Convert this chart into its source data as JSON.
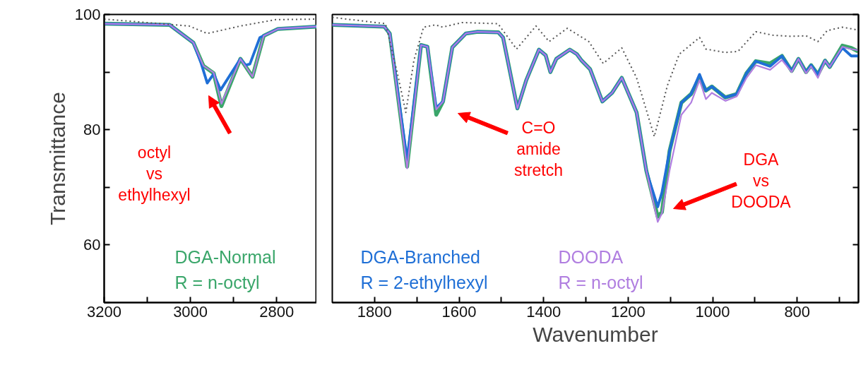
{
  "chart_data": [
    {
      "type": "line",
      "ylabel": "Transmittance",
      "xlim": [
        3200,
        2707
      ],
      "xticks": [
        3200,
        {
          "value": 3100,
          "label": null
        },
        3000,
        {
          "value": 2900,
          "label": null
        },
        2800
      ],
      "ylim": [
        50,
        100
      ],
      "yticks": [
        {
          "value": 50,
          "label": null
        },
        60,
        {
          "value": 70,
          "label": null
        },
        80,
        {
          "value": 90,
          "label": null
        },
        100
      ],
      "grid": false,
      "legend": "bottom",
      "marker": "none",
      "annotations": [
        "octyl\nvs\nethylhexyl"
      ],
      "series": [
        {
          "name": "DGA-Normal\nR = n-octyl",
          "color": "#3aa66a",
          "line_style": "solid",
          "x": [
            3200,
            3048,
            2993,
            2970,
            2946,
            2928,
            2884,
            2856,
            2830,
            2797,
            2707
          ],
          "values": [
            98.4,
            98.2,
            95.1,
            91.1,
            89.8,
            84.1,
            92.3,
            89.2,
            96.3,
            97.5,
            97.9
          ]
        },
        {
          "color": "#1f6fd6",
          "line_style": "solid",
          "x": [
            3200,
            3048,
            2993,
            2975,
            2961,
            2946,
            2930,
            2884,
            2872,
            2862,
            2839,
            2797,
            2707
          ],
          "values": [
            98.4,
            98.2,
            95.1,
            91.5,
            88.1,
            89.7,
            86.9,
            92.3,
            91.2,
            91.4,
            96.0,
            97.5,
            97.9
          ]
        },
        {
          "color": "#b07ee0",
          "line_style": "solid",
          "x": [
            3200,
            3048,
            2993,
            2970,
            2946,
            2928,
            2884,
            2856,
            2830,
            2797,
            2707
          ],
          "values": [
            98.4,
            98.2,
            95.1,
            91.1,
            89.9,
            84.5,
            92.3,
            89.2,
            96.3,
            97.5,
            97.9
          ]
        },
        {
          "color": "#555555",
          "line_style": "dotted",
          "x": [
            3200,
            3003,
            2961,
            2884,
            2802,
            2708
          ],
          "values": [
            99.2,
            98.0,
            96.7,
            98.0,
            99.1,
            99.2
          ]
        }
      ]
    },
    {
      "type": "line",
      "xlabel": "Wavenumber",
      "xlim": [
        1900,
        655
      ],
      "xticks": [
        1800,
        {
          "value": 1700,
          "label": null
        },
        1600,
        {
          "value": 1500,
          "label": null
        },
        1400,
        {
          "value": 1300,
          "label": null
        },
        1200,
        {
          "value": 1100,
          "label": null
        },
        1000,
        {
          "value": 900,
          "label": null
        },
        800,
        {
          "value": 700,
          "label": null
        }
      ],
      "ylim": [
        50,
        100
      ],
      "yticks": [
        {
          "value": 50,
          "label": null
        },
        {
          "value": 60,
          "label": null
        },
        {
          "value": 70,
          "label": null
        },
        {
          "value": 80,
          "label": null
        },
        {
          "value": 90,
          "label": null
        },
        {
          "value": 100,
          "label": null
        }
      ],
      "tick_labels": "x",
      "grid": false,
      "legend": "bottom",
      "marker": "none",
      "annotations": [
        "C=O\namide\nstretch",
        "DGA\nvs\nDOODA"
      ],
      "series": [
        {
          "color": "#3aa66a",
          "line_style": "solid",
          "x": [
            1900,
            1777,
            1764,
            1723,
            1690,
            1675,
            1654,
            1638,
            1616,
            1584,
            1556,
            1507,
            1496,
            1462,
            1441,
            1411,
            1395,
            1384,
            1370,
            1338,
            1321,
            1310,
            1290,
            1261,
            1238,
            1215,
            1180,
            1157,
            1130,
            1120,
            1102,
            1074,
            1051,
            1031,
            1016,
            1002,
            970,
            943,
            920,
            898,
            864,
            836,
            813,
            797,
            779,
            767,
            751,
            734,
            723,
            693,
            672,
            656
          ],
          "values": [
            98.2,
            97.9,
            96.7,
            73.6,
            94.7,
            94.4,
            82.6,
            84.9,
            94.3,
            96.7,
            97.0,
            96.9,
            96.0,
            83.7,
            88.6,
            93.9,
            92.9,
            90.0,
            92.3,
            93.9,
            93.1,
            92.0,
            90.5,
            84.9,
            86.4,
            89.0,
            83.0,
            72.9,
            64.9,
            65.7,
            76.3,
            84.7,
            86.2,
            89.0,
            86.8,
            87.5,
            85.6,
            86.2,
            89.8,
            91.9,
            91.5,
            92.8,
            90.2,
            92.3,
            90.0,
            91.2,
            89.6,
            92.0,
            90.9,
            94.6,
            94.2,
            93.6
          ]
        },
        {
          "name": "DGA-Branched\nR = 2-ethylhexyl",
          "color": "#1f6fd6",
          "line_style": "solid",
          "x": [
            1900,
            1777,
            1764,
            1723,
            1690,
            1675,
            1654,
            1638,
            1616,
            1584,
            1556,
            1507,
            1496,
            1462,
            1441,
            1411,
            1395,
            1384,
            1370,
            1338,
            1321,
            1310,
            1290,
            1261,
            1238,
            1215,
            1180,
            1157,
            1130,
            1120,
            1102,
            1074,
            1051,
            1031,
            1016,
            1002,
            970,
            943,
            920,
            898,
            864,
            836,
            813,
            797,
            779,
            767,
            751,
            734,
            723,
            693,
            672,
            656
          ],
          "values": [
            98.2,
            97.9,
            96.7,
            74.8,
            94.7,
            94.4,
            83.8,
            84.9,
            94.3,
            96.7,
            97.0,
            96.9,
            96.0,
            83.7,
            88.6,
            93.9,
            92.9,
            90.0,
            92.3,
            93.9,
            93.1,
            92.0,
            90.5,
            84.9,
            86.4,
            89.0,
            83.0,
            72.9,
            66.6,
            69.1,
            76.3,
            84.7,
            86.2,
            89.6,
            86.8,
            87.5,
            85.6,
            86.2,
            89.8,
            91.9,
            91.0,
            92.8,
            90.2,
            92.3,
            90.0,
            91.2,
            89.6,
            92.0,
            90.9,
            94.2,
            92.8,
            92.8
          ]
        },
        {
          "name": "DOODA\nR = n-octyl",
          "color": "#b07ee0",
          "line_style": "solid",
          "x": [
            1900,
            1777,
            1764,
            1723,
            1690,
            1675,
            1654,
            1638,
            1616,
            1584,
            1556,
            1507,
            1496,
            1462,
            1441,
            1411,
            1395,
            1384,
            1370,
            1338,
            1321,
            1310,
            1290,
            1261,
            1238,
            1215,
            1180,
            1157,
            1130,
            1120,
            1102,
            1074,
            1051,
            1031,
            1016,
            1002,
            970,
            943,
            920,
            898,
            864,
            836,
            813,
            797,
            779,
            767,
            751,
            734,
            723,
            693,
            672,
            656
          ],
          "values": [
            98.2,
            97.9,
            96.7,
            73.3,
            94.7,
            94.4,
            83.5,
            84.9,
            94.3,
            96.7,
            97.0,
            96.9,
            96.0,
            83.7,
            88.6,
            93.9,
            92.9,
            90.0,
            92.3,
            93.9,
            93.1,
            92.0,
            90.5,
            84.9,
            86.4,
            89.0,
            83.0,
            72.9,
            64.0,
            65.5,
            72.9,
            82.6,
            84.7,
            88.6,
            85.3,
            86.4,
            85.0,
            85.8,
            89.0,
            91.2,
            90.4,
            92.1,
            90.0,
            92.3,
            89.8,
            91.0,
            89.0,
            92.0,
            90.9,
            94.4,
            94.0,
            93.8
          ]
        },
        {
          "color": "#555555",
          "line_style": "dotted",
          "x": [
            1900,
            1774,
            1746,
            1726,
            1707,
            1684,
            1656,
            1639,
            1593,
            1508,
            1464,
            1418,
            1387,
            1344,
            1293,
            1259,
            1215,
            1180,
            1138,
            1107,
            1079,
            1031,
            1016,
            970,
            940,
            898,
            857,
            815,
            779,
            751,
            729,
            693,
            656
          ],
          "values": [
            99.5,
            98.4,
            89.8,
            83.0,
            92.0,
            97.8,
            98.2,
            97.8,
            98.6,
            98.4,
            94.0,
            98.0,
            95.3,
            97.6,
            95.3,
            91.5,
            94.2,
            89.0,
            78.8,
            87.7,
            93.1,
            96.0,
            94.0,
            93.4,
            93.6,
            97.0,
            96.4,
            96.2,
            96.3,
            95.3,
            97.2,
            97.8,
            97.3
          ]
        }
      ]
    }
  ]
}
